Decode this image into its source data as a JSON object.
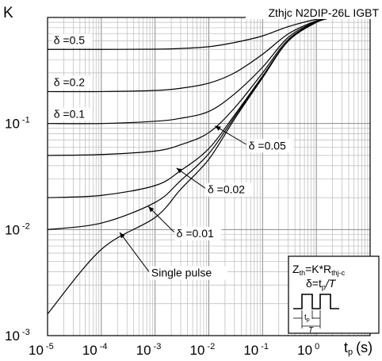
{
  "chart_data": {
    "type": "line",
    "title": "Zthjc N2DIP-26L IGBT",
    "ylabel": "K",
    "xlabel": "t",
    "xlabel_sub": "p",
    "xlabel_unit": "(s)",
    "x_scale": "log",
    "y_scale": "log",
    "xlim": [
      1e-05,
      10
    ],
    "ylim": [
      0.001,
      1
    ],
    "grid": true,
    "x_ticks": [
      {
        "value": 1e-05,
        "base": "10",
        "exp": "-5"
      },
      {
        "value": 0.0001,
        "base": "10",
        "exp": "-4"
      },
      {
        "value": 0.001,
        "base": "10",
        "exp": "-3"
      },
      {
        "value": 0.01,
        "base": "10",
        "exp": "-2"
      },
      {
        "value": 0.1,
        "base": "10",
        "exp": "-1"
      },
      {
        "value": 1,
        "base": "10",
        "exp": "0"
      }
    ],
    "y_ticks": [
      {
        "value": 0.1,
        "base": "10",
        "exp": "-1"
      },
      {
        "value": 0.01,
        "base": "10",
        "exp": "-2"
      },
      {
        "value": 0.001,
        "base": "10",
        "exp": "-3"
      }
    ],
    "series": [
      {
        "name": "δ =0.5",
        "x": [
          1e-05,
          0.0001,
          0.001,
          0.003,
          0.01,
          0.03,
          0.1,
          0.3,
          1,
          2
        ],
        "y": [
          0.5,
          0.5,
          0.502,
          0.51,
          0.53,
          0.58,
          0.67,
          0.82,
          0.96,
          1.0
        ]
      },
      {
        "name": "δ =0.2",
        "x": [
          1e-05,
          0.0001,
          0.001,
          0.003,
          0.01,
          0.03,
          0.1,
          0.3,
          1,
          2
        ],
        "y": [
          0.2,
          0.2,
          0.205,
          0.215,
          0.24,
          0.3,
          0.45,
          0.7,
          0.93,
          1.0
        ]
      },
      {
        "name": "δ =0.1",
        "x": [
          1e-05,
          0.0001,
          0.001,
          0.003,
          0.01,
          0.03,
          0.1,
          0.3,
          1,
          2
        ],
        "y": [
          0.1,
          0.1,
          0.105,
          0.112,
          0.13,
          0.19,
          0.34,
          0.65,
          0.92,
          1.0
        ]
      },
      {
        "name": "δ =0.05",
        "x": [
          1e-05,
          0.0001,
          0.001,
          0.003,
          0.01,
          0.03,
          0.1,
          0.3,
          1,
          2
        ],
        "y": [
          0.05,
          0.051,
          0.055,
          0.063,
          0.082,
          0.14,
          0.3,
          0.62,
          0.91,
          1.0
        ]
      },
      {
        "name": "δ =0.02",
        "x": [
          1e-05,
          0.0001,
          0.001,
          0.003,
          0.01,
          0.03,
          0.1,
          0.3,
          1,
          2
        ],
        "y": [
          0.02,
          0.021,
          0.026,
          0.036,
          0.058,
          0.12,
          0.28,
          0.6,
          0.9,
          1.0
        ]
      },
      {
        "name": "δ =0.01",
        "x": [
          1e-05,
          0.0001,
          0.001,
          0.003,
          0.01,
          0.03,
          0.1,
          0.3,
          1,
          2
        ],
        "y": [
          0.01,
          0.0115,
          0.018,
          0.029,
          0.052,
          0.115,
          0.275,
          0.6,
          0.9,
          1.0
        ]
      },
      {
        "name": "Single pulse",
        "x": [
          1e-05,
          0.0001,
          0.001,
          0.003,
          0.01,
          0.03,
          0.1,
          0.3,
          1,
          2
        ],
        "y": [
          0.0016,
          0.0065,
          0.013,
          0.024,
          0.046,
          0.11,
          0.27,
          0.6,
          0.9,
          1.0
        ]
      }
    ],
    "curve_labels": [
      {
        "text": "δ =0.5",
        "x": 1.3e-05,
        "y": 0.56
      },
      {
        "text": "δ =0.2",
        "x": 1.3e-05,
        "y": 0.225
      },
      {
        "text": "δ =0.1",
        "x": 1.3e-05,
        "y": 0.113
      },
      {
        "text": "δ =0.05",
        "x": 0.055,
        "y": 0.057,
        "arrow_to_x": 0.013,
        "arrow_to_y": 0.095
      },
      {
        "text": "δ =0.02",
        "x": 0.0095,
        "y": 0.022,
        "arrow_to_x": 0.0025,
        "arrow_to_y": 0.038
      },
      {
        "text": "δ =0.01",
        "x": 0.0025,
        "y": 0.0085,
        "arrow_to_x": 0.00075,
        "arrow_to_y": 0.0165
      },
      {
        "text": "Single pulse",
        "x": 0.00085,
        "y": 0.0036,
        "arrow_to_x": 0.00022,
        "arrow_to_y": 0.0094
      }
    ],
    "inset": {
      "line1_a": "Z",
      "line1_sub_a": "th",
      "line1_b": "=K*R",
      "line1_sub_b": "thj-c",
      "line2_a": "δ=t",
      "line2_sub": "p",
      "line2_b": "/T",
      "pulse_label": "t",
      "pulse_label_sub": "p",
      "period_label": "T"
    }
  }
}
